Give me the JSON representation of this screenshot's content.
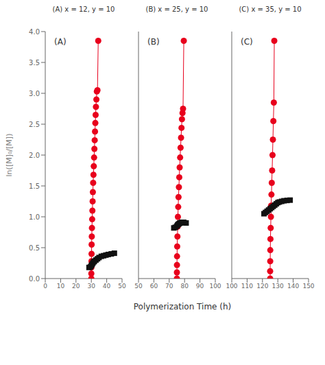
{
  "chart_data": [
    {
      "type": "scatter",
      "title": "(A)",
      "annotations": [
        "(A) x = 12, y = 10"
      ],
      "ylabel": "ln([M]₀/[M])",
      "xlim": [
        0,
        50
      ],
      "xticks": [
        0,
        10,
        20,
        30,
        40,
        50
      ],
      "ylim": [
        0.0,
        4.0
      ],
      "yticks": [
        {
          "value": 0.0,
          "label": "0.0"
        },
        0.5,
        {
          "value": 1.0,
          "label": "1.0"
        },
        1.5,
        {
          "value": 2.0,
          "label": "2.0"
        },
        2.5,
        {
          "value": 3.0,
          "label": "3.0"
        },
        3.5,
        {
          "value": 4.0,
          "label": "4.0"
        }
      ],
      "grid": false,
      "series": [
        {
          "type": "line",
          "color": "#e8001c",
          "marker": "circle",
          "line_style": "solid",
          "x": [
            30.0,
            30.0,
            30.05,
            30.1,
            30.15,
            30.2,
            30.3,
            30.4,
            30.55,
            30.7,
            30.85,
            31.0,
            31.2,
            31.4,
            31.6,
            31.8,
            32.0,
            32.2,
            32.4,
            32.6,
            32.8,
            33.0,
            33.3,
            33.6,
            34.0,
            34.5
          ],
          "values": [
            0.0,
            0.08,
            0.18,
            0.28,
            0.4,
            0.55,
            0.68,
            0.82,
            0.96,
            1.1,
            1.25,
            1.4,
            1.55,
            1.68,
            1.82,
            1.96,
            2.1,
            2.24,
            2.38,
            2.52,
            2.65,
            2.78,
            2.9,
            3.03,
            3.05,
            3.85
          ]
        },
        {
          "type": "scatter",
          "color": "#111111",
          "marker": "square",
          "x": [
            28.5,
            29.5,
            30.0,
            30.5,
            31.0,
            31.5,
            32.0,
            33.0,
            34.0,
            35.0,
            36.5,
            38.0,
            39.5,
            41.0,
            43.0,
            45.0
          ],
          "values": [
            0.18,
            0.19,
            0.21,
            0.23,
            0.25,
            0.27,
            0.28,
            0.3,
            0.32,
            0.34,
            0.36,
            0.37,
            0.38,
            0.39,
            0.4,
            0.41
          ]
        }
      ]
    },
    {
      "type": "scatter",
      "title": "(B)",
      "annotations": [
        "(B) x = 25, y = 10"
      ],
      "xlabel": "Polymerization Time (h)",
      "tick_labels": "x",
      "xlim": [
        50,
        100
      ],
      "xticks": [
        50,
        60,
        70,
        80,
        90,
        100
      ],
      "ylim": [
        0.0,
        4.0
      ],
      "yticks": [
        0.0,
        0.5,
        1.0,
        1.5,
        2.0,
        2.5,
        3.0,
        3.5,
        4.0
      ],
      "grid": false,
      "series": [
        {
          "type": "line",
          "color": "#e8001c",
          "marker": "circle",
          "line_style": "solid",
          "x": [
            75.0,
            75.0,
            75.05,
            75.1,
            75.2,
            75.35,
            75.5,
            75.65,
            75.85,
            76.05,
            76.3,
            76.55,
            76.8,
            77.1,
            77.4,
            77.7,
            78.0,
            78.3,
            78.65,
            79.0,
            79.5
          ],
          "values": [
            0.0,
            0.1,
            0.22,
            0.36,
            0.52,
            0.68,
            0.84,
            1.0,
            1.16,
            1.32,
            1.48,
            1.64,
            1.8,
            1.96,
            2.12,
            2.28,
            2.44,
            2.58,
            2.68,
            2.75,
            3.85
          ]
        },
        {
          "type": "scatter",
          "color": "#111111",
          "marker": "square",
          "x": [
            73.0,
            74.0,
            75.0,
            75.5,
            76.0,
            76.5,
            77.0,
            77.5,
            78.0,
            78.5,
            79.0,
            79.5,
            81.0
          ],
          "values": [
            0.82,
            0.83,
            0.85,
            0.87,
            0.88,
            0.89,
            0.9,
            0.9,
            0.91,
            0.91,
            0.91,
            0.91,
            0.9
          ]
        }
      ]
    },
    {
      "type": "scatter",
      "title": "(C)",
      "annotations": [
        "(C) x = 35, y = 10"
      ],
      "tick_labels": "x",
      "xlim": [
        100,
        150
      ],
      "xticks": [
        100,
        110,
        120,
        130,
        140,
        150
      ],
      "ylim": [
        0.0,
        4.0
      ],
      "yticks": [
        0.0,
        0.5,
        1.0,
        1.5,
        2.0,
        2.5,
        3.0,
        3.5,
        4.0
      ],
      "grid": false,
      "series": [
        {
          "type": "line",
          "color": "#e8001c",
          "marker": "circle",
          "line_style": "solid",
          "x": [
            125.0,
            125.0,
            125.05,
            125.1,
            125.2,
            125.35,
            125.5,
            125.65,
            125.85,
            126.05,
            126.3,
            126.55,
            126.8,
            127.1,
            127.4,
            127.7
          ],
          "values": [
            0.0,
            0.12,
            0.28,
            0.46,
            0.64,
            0.82,
            1.0,
            1.18,
            1.36,
            1.55,
            1.75,
            2.0,
            2.25,
            2.55,
            2.85,
            3.85
          ]
        },
        {
          "type": "scatter",
          "color": "#111111",
          "marker": "square",
          "x": [
            121.0,
            122.0,
            123.0,
            124.0,
            125.0,
            126.0,
            127.0,
            128.0,
            129.0,
            130.0,
            131.0,
            132.5,
            134.0,
            136.0,
            138.0
          ],
          "values": [
            1.05,
            1.07,
            1.09,
            1.11,
            1.13,
            1.15,
            1.17,
            1.19,
            1.21,
            1.23,
            1.24,
            1.25,
            1.26,
            1.265,
            1.27
          ]
        }
      ]
    }
  ]
}
